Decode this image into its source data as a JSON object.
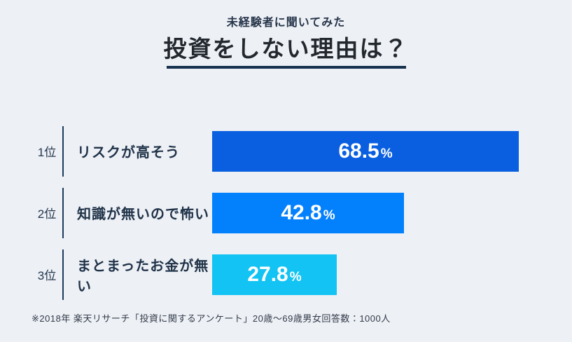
{
  "header": {
    "subtitle": "未経験者に聞いてみた",
    "title": "投資をしない理由は？",
    "underline_color": "#17324f"
  },
  "chart_data": {
    "type": "bar",
    "orientation": "horizontal",
    "title": "投資をしない理由は？",
    "subtitle": "未経験者に聞いてみた",
    "unit": "%",
    "xlim": [
      0,
      100
    ],
    "grid": false,
    "legend": false,
    "categories": [
      "リスクが高そう",
      "知識が無いので怖い",
      "まとまったお金が無い"
    ],
    "values": [
      68.5,
      42.8,
      27.8
    ],
    "rows": [
      {
        "rank": "1位",
        "label": "リスクが高そう",
        "value": 68.5,
        "value_display": "68.5",
        "unit": "%",
        "color": "#0a5fe0"
      },
      {
        "rank": "2位",
        "label": "知識が無いので怖い",
        "value": 42.8,
        "value_display": "42.8",
        "unit": "%",
        "color": "#0381fc"
      },
      {
        "rank": "3位",
        "label": "まとまったお金が無い",
        "value": 27.8,
        "value_display": "27.8",
        "unit": "%",
        "color": "#12c3f3"
      }
    ]
  },
  "footer": {
    "note": "※2018年 楽天リサーチ「投資に関するアンケート」20歳～69歳男女回答数：1000人"
  }
}
